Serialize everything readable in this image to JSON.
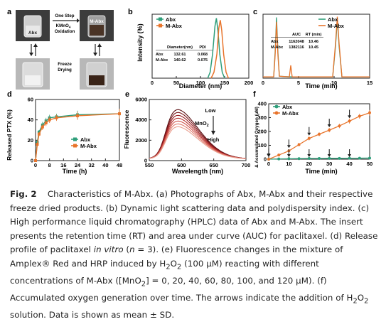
{
  "panels": {
    "a": {
      "letter": "a",
      "top_left_label": "Abx",
      "top_right_label": "M-Abx",
      "process_top": "One Step",
      "process_reagent": "KMnO",
      "process_reagent_sub": "4",
      "process_bottom": "Oxidation",
      "freeze_1": "Freeze",
      "freeze_2": "Drying"
    },
    "b": {
      "letter": "b"
    },
    "c": {
      "letter": "c"
    },
    "d": {
      "letter": "d"
    },
    "e": {
      "letter": "e"
    },
    "f": {
      "letter": "f"
    }
  },
  "chart_data": [
    {
      "id": "b",
      "type": "line",
      "xlabel": "Diameter (nm)",
      "ylabel": "Intensity (%)",
      "xlim": [
        0,
        200
      ],
      "xticks": [
        0,
        50,
        100,
        150,
        200
      ],
      "legend": [
        "Abx",
        "M-Abx"
      ],
      "table": {
        "header": [
          "",
          "Diameter(nm)",
          "PDI"
        ],
        "rows": [
          [
            "Abx",
            "132.61",
            "0.068"
          ],
          [
            "M-Abx",
            "140.62",
            "0.075"
          ]
        ]
      },
      "series": [
        {
          "name": "Abx",
          "x": [
            115,
            120,
            125,
            130,
            133,
            136,
            140,
            145,
            150
          ],
          "y": [
            0,
            3,
            12,
            26,
            30,
            24,
            12,
            3,
            0
          ]
        },
        {
          "name": "M-Abx",
          "x": [
            122,
            128,
            134,
            138,
            141,
            144,
            148,
            153,
            158
          ],
          "y": [
            0,
            3,
            12,
            25,
            29,
            24,
            12,
            3,
            0
          ]
        }
      ],
      "colors": {
        "Abx": "#2e9e7a",
        "M-Abx": "#e8742b"
      }
    },
    {
      "id": "c",
      "type": "line",
      "xlabel": "Time (min)",
      "ylabel": "",
      "xlim": [
        0,
        15
      ],
      "xticks": [
        0,
        5,
        10,
        15
      ],
      "legend": [
        "Abx",
        "M-Abx"
      ],
      "table": {
        "header": [
          "",
          "AUC",
          "RT (min)"
        ],
        "rows": [
          [
            "Abx",
            "1162048",
            "10.46"
          ],
          [
            "M-Abx",
            "1382116",
            "10.45"
          ]
        ]
      },
      "series": [
        {
          "name": "Abx",
          "x": [
            0,
            1.5,
            1.7,
            1.9,
            2.1,
            2.3,
            4,
            9.8,
            10.2,
            10.46,
            10.7,
            11.1,
            15
          ],
          "y": [
            2,
            2,
            40,
            95,
            40,
            3,
            2,
            2,
            50,
            92,
            50,
            2,
            2
          ]
        },
        {
          "name": "M-Abx",
          "x": [
            0,
            1.5,
            1.7,
            1.9,
            2.1,
            2.3,
            3.7,
            3.9,
            4.1,
            9.8,
            10.2,
            10.45,
            10.7,
            11.1,
            15
          ],
          "y": [
            2,
            2,
            35,
            88,
            35,
            3,
            2,
            20,
            2,
            2,
            55,
            96,
            55,
            2,
            2
          ]
        }
      ],
      "colors": {
        "Abx": "#2e9e7a",
        "M-Abx": "#e8742b"
      }
    },
    {
      "id": "d",
      "type": "line",
      "xlabel": "Time (h)",
      "ylabel": "Released PTX (%)",
      "xlim": [
        0,
        48
      ],
      "ylim": [
        0,
        60
      ],
      "xticks": [
        0,
        8,
        16,
        24,
        32,
        40,
        48
      ],
      "yticks": [
        0,
        20,
        40,
        60
      ],
      "legend": [
        "Abx",
        "M-Abx"
      ],
      "series": [
        {
          "name": "Abx",
          "x": [
            0,
            1,
            2,
            4,
            6,
            8,
            12,
            24,
            48
          ],
          "y": [
            0,
            18,
            28,
            35,
            39,
            42,
            43,
            45,
            46
          ],
          "err": [
            0,
            2,
            2,
            3,
            3,
            3,
            3,
            4,
            4
          ]
        },
        {
          "name": "M-Abx",
          "x": [
            0,
            1,
            2,
            4,
            6,
            8,
            12,
            24,
            48
          ],
          "y": [
            0,
            16,
            26,
            33,
            37,
            40,
            42,
            44,
            46
          ],
          "err": [
            0,
            2,
            2,
            3,
            3,
            3,
            3,
            4,
            5
          ]
        }
      ],
      "colors": {
        "Abx": "#2e9e7a",
        "M-Abx": "#e8742b"
      }
    },
    {
      "id": "e",
      "type": "line",
      "xlabel": "Wavelength (nm)",
      "ylabel": "Fluorescence",
      "xlim": [
        550,
        700
      ],
      "ylim": [
        0,
        6000
      ],
      "xticks": [
        550,
        600,
        650,
        700
      ],
      "yticks": [
        0,
        2000,
        4000,
        6000
      ],
      "annotation_top": "Low",
      "annotation_mid": "MnO",
      "annotation_mid_sub": "2",
      "annotation_bottom": "High",
      "peaks": [
        5200,
        4900,
        4600,
        4300,
        4000,
        3700,
        3400
      ],
      "colors": [
        "#5a0f12",
        "#7a1518",
        "#9a1f22",
        "#b8322f",
        "#cf5148",
        "#e07a6c",
        "#eaa090"
      ]
    },
    {
      "id": "f",
      "type": "line",
      "xlabel": "Time (min)",
      "ylabel": "Δ Accumulated Oxygen (μM)",
      "xlim": [
        0,
        50
      ],
      "ylim": [
        0,
        400
      ],
      "xticks": [
        0,
        10,
        20,
        30,
        40,
        50
      ],
      "yticks": [
        0,
        100,
        200,
        300,
        400
      ],
      "legend": [
        "Abx",
        "M-Abx"
      ],
      "arrows_at": [
        0,
        10,
        20,
        30,
        40
      ],
      "series": [
        {
          "name": "Abx",
          "x": [
            0,
            5,
            10,
            15,
            20,
            25,
            30,
            35,
            40,
            45,
            50
          ],
          "y": [
            0,
            2,
            3,
            4,
            5,
            5,
            6,
            6,
            7,
            7,
            8
          ],
          "err": [
            0,
            3,
            3,
            3,
            3,
            3,
            3,
            3,
            3,
            3,
            3
          ]
        },
        {
          "name": "M-Abx",
          "x": [
            0,
            5,
            10,
            15,
            20,
            25,
            30,
            35,
            40,
            45,
            50
          ],
          "y": [
            0,
            30,
            60,
            105,
            150,
            180,
            210,
            240,
            275,
            310,
            335
          ],
          "err": [
            0,
            8,
            10,
            12,
            14,
            14,
            16,
            16,
            18,
            18,
            20
          ]
        }
      ],
      "colors": {
        "Abx": "#2e9e7a",
        "M-Abx": "#e8742b"
      }
    }
  ],
  "caption": {
    "label": "Fig. 2",
    "text_1": "Characteristics of M-Abx. (a) Photographs of Abx, M-Abx and their respective freeze dried products. (b) Dynamic light scattering data and polydispersity index. (c) High performance liquid chromatography (HPLC) data of Abx and M-Abx. The insert presents the retention time (RT) and area under curve (AUC) for paclitaxel. (d) Release profile of paclitaxel ",
    "italic_1": "in vitro",
    "text_2": " (",
    "italic_2": "n",
    "text_3": " = 3). (e) Fluorescence changes in the mixture of Amplex® Red and HRP induced by H",
    "sub_1": "2",
    "text_4": "O",
    "sub_2": "2",
    "text_5": " (100 μM) reacting with different concentrations of M-Abx ([MnO",
    "sub_3": "2",
    "text_6": "] = 0, 20, 40, 60, 80, 100, and 120 μM). (f) Accumulated oxygen generation over time. The arrows indicate the addition of H",
    "sub_4": "2",
    "text_7": "O",
    "sub_5": "2",
    "text_8": " solution. Data is shown as mean ± SD."
  }
}
